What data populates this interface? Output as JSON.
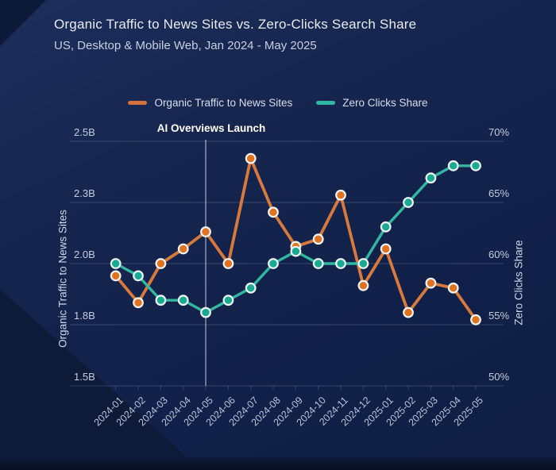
{
  "header": {
    "title": "Organic Traffic to News Sites vs. Zero-Clicks Search Share",
    "subtitle": "US, Desktop & Mobile Web, Jan 2024 - May 2025"
  },
  "legend": {
    "items": [
      {
        "label": "Organic Traffic to News Sites",
        "color": "#d4743c"
      },
      {
        "label": "Zero Clicks Share",
        "color": "#32b7a2"
      }
    ]
  },
  "annotation": {
    "label": "AI Overviews Launch",
    "x_category": "2024-05"
  },
  "axes": {
    "left": {
      "title": "Organic Traffic to News Sites",
      "tick_labels": [
        "2.5B",
        "2.3B",
        "2.0B",
        "1.8B",
        "1.5B"
      ]
    },
    "right": {
      "title": "Zero Clicks Share",
      "tick_labels": [
        "70%",
        "65%",
        "60%",
        "55%",
        "50%"
      ]
    }
  },
  "chart_data": {
    "type": "line",
    "title": "Organic Traffic to News Sites vs. Zero-Clicks Search Share",
    "subtitle": "US, Desktop & Mobile Web, Jan 2024 - May 2025",
    "categories": [
      "2024-01",
      "2024-02",
      "2024-03",
      "2024-04",
      "2024-05",
      "2024-06",
      "2024-07",
      "2024-08",
      "2024-09",
      "2024-10",
      "2024-11",
      "2024-12",
      "2025-01",
      "2025-02",
      "2025-03",
      "2025-04",
      "2025-05"
    ],
    "series": [
      {
        "name": "Organic Traffic to News Sites",
        "axis": "left",
        "unit": "B",
        "color": "#d97a3d",
        "marker_color": "#e2731e",
        "values": [
          1.95,
          1.84,
          2.0,
          2.06,
          2.13,
          2.0,
          2.43,
          2.21,
          2.07,
          2.1,
          2.28,
          1.91,
          2.06,
          1.8,
          1.92,
          1.9,
          1.77
        ]
      },
      {
        "name": "Zero Clicks Share",
        "axis": "right",
        "unit": "%",
        "color": "#32b7a2",
        "marker_color": "#17ab93",
        "values": [
          60,
          59,
          57,
          57,
          56,
          57,
          58,
          60,
          61,
          60,
          60,
          60,
          63,
          65,
          67,
          68,
          68
        ]
      }
    ],
    "ylabel_left": "Organic Traffic to News Sites",
    "ylabel_right": "Zero Clicks Share",
    "ylim_left": [
      1.5,
      2.5
    ],
    "ylim_right": [
      50,
      70
    ],
    "grid": true,
    "legend_position": "top",
    "annotation": {
      "label": "AI Overviews Launch",
      "x_category": "2024-05"
    }
  },
  "colors": {
    "background": "#15254e",
    "gridline": "rgba(186,199,222,0.22)",
    "annotation_line": "rgba(214,223,238,0.6)",
    "marker_stroke": "#f2f5f9"
  }
}
